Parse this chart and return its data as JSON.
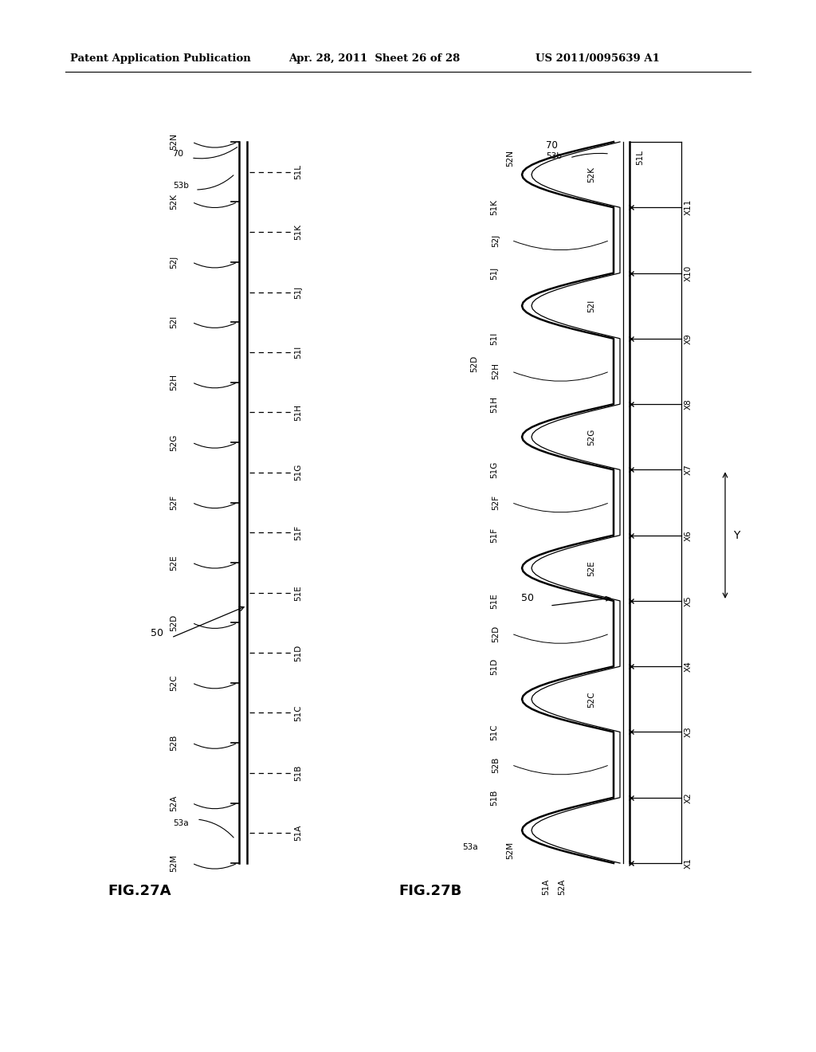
{
  "bg_color": "#ffffff",
  "header_left": "Patent Application Publication",
  "header_mid": "Apr. 28, 2011  Sheet 26 of 28",
  "header_right": "US 2011/0095639 A1",
  "fig27a_label": "FIG.27A",
  "fig27b_label": "FIG.27B",
  "slot_labels_52_a": [
    "52N",
    "52K",
    "52J",
    "52I",
    "52H",
    "52G",
    "52F",
    "52E",
    "52D",
    "52C",
    "52B",
    "52A",
    "52M"
  ],
  "slot_labels_51_a": [
    "51L",
    "51K",
    "51J",
    "51I",
    "51H",
    "51G",
    "51F",
    "51E",
    "51D",
    "51C",
    "51B",
    "51A"
  ],
  "slot_labels_52_b_left": [
    "52J",
    "52H",
    "52F",
    "52D",
    "52B"
  ],
  "slot_labels_51_b_left": [
    "51K",
    "51J",
    "51I",
    "51H",
    "51G",
    "51F",
    "51E",
    "51D",
    "51C",
    "51B"
  ],
  "slot_labels_52_b_right": [
    "52K",
    "52I",
    "52G",
    "52E",
    "52C"
  ],
  "x_labels": [
    "X11",
    "X10",
    "X9",
    "X8",
    "X7",
    "X6",
    "X5",
    "X4",
    "X3",
    "X2",
    "X1"
  ],
  "y_label": "Y",
  "label_50": "50",
  "label_70": "70",
  "label_53a": "53a",
  "label_53b": "53b",
  "label_52N_b": "52N",
  "label_51L_b": "51L",
  "label_52M_b": "52M",
  "label_51A_b": "51A",
  "label_52A_b": "52A"
}
